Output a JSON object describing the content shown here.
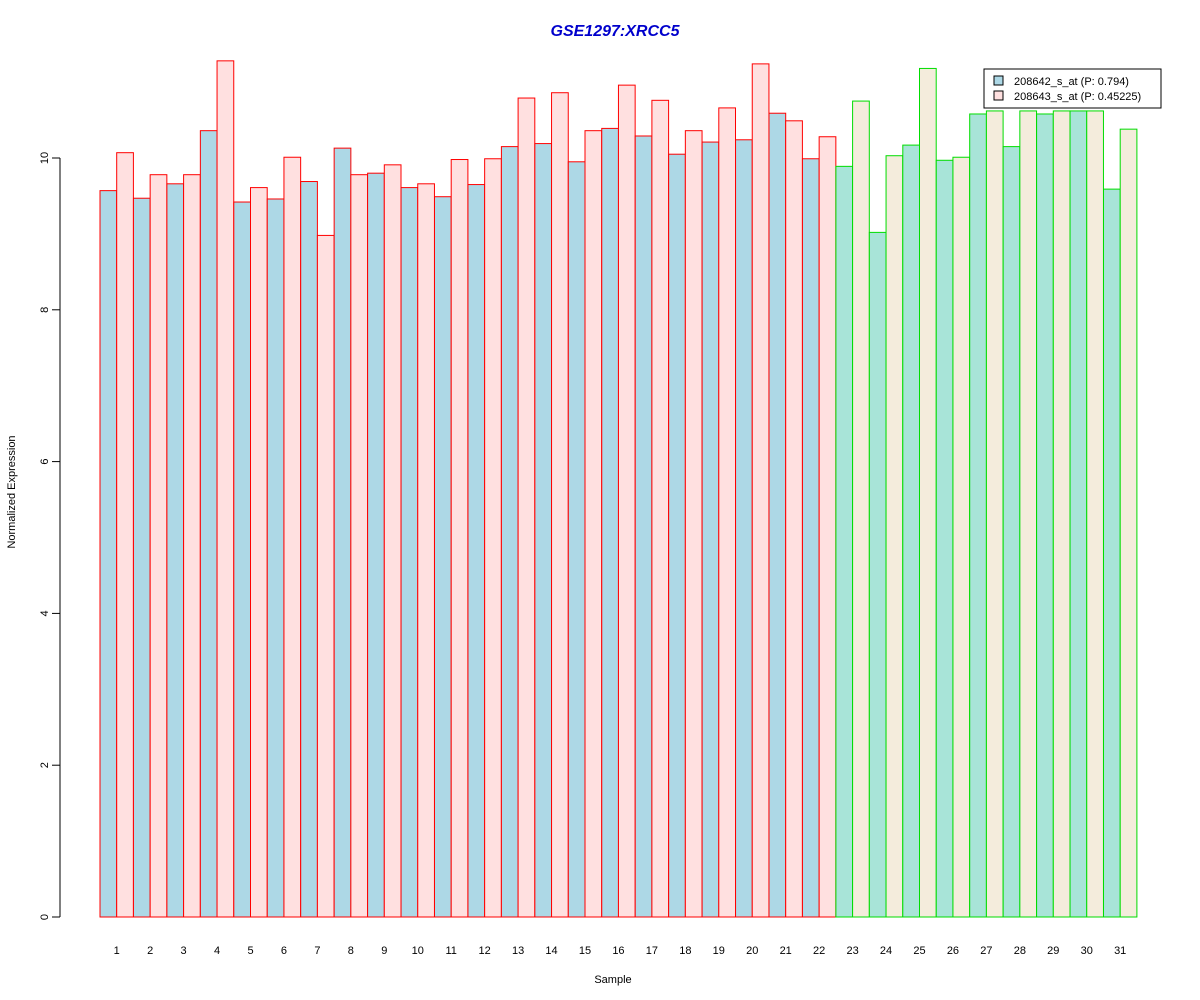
{
  "chart_data": {
    "type": "bar",
    "title": "GSE1297:XRCC5",
    "xlabel": "Sample",
    "ylabel": "Normalized Expression",
    "ylim": [
      0,
      11.3
    ],
    "yticks": [
      0,
      2,
      4,
      6,
      8,
      10
    ],
    "grid": false,
    "legend_position": "top-right",
    "categories": [
      "1",
      "2",
      "3",
      "4",
      "5",
      "6",
      "7",
      "8",
      "9",
      "10",
      "11",
      "12",
      "13",
      "14",
      "15",
      "16",
      "17",
      "18",
      "19",
      "20",
      "21",
      "22",
      "23",
      "24",
      "25",
      "26",
      "27",
      "28",
      "29",
      "30",
      "31"
    ],
    "series": [
      {
        "name": "208642_s_at (P: 0.794)",
        "values": [
          9.57,
          9.47,
          9.66,
          10.36,
          9.42,
          9.46,
          9.69,
          10.13,
          9.8,
          9.61,
          9.49,
          9.65,
          10.15,
          10.19,
          9.95,
          10.39,
          10.29,
          10.05,
          10.21,
          10.24,
          10.59,
          9.99,
          9.89,
          9.02,
          10.17,
          9.97,
          10.58,
          10.15,
          10.58,
          10.62,
          9.59
        ]
      },
      {
        "name": "208643_s_at (P: 0.45225)",
        "values": [
          10.07,
          9.78,
          9.78,
          11.28,
          9.61,
          10.01,
          8.98,
          9.78,
          9.91,
          9.66,
          9.98,
          9.99,
          10.79,
          10.86,
          10.36,
          10.96,
          10.76,
          10.36,
          10.66,
          11.24,
          10.49,
          10.28,
          10.75,
          10.03,
          11.18,
          10.01,
          10.62,
          10.62,
          10.62,
          10.62,
          10.38
        ]
      }
    ],
    "group_colors": {
      "border": [
        "#ff0000",
        "#ff0000",
        "#ff0000",
        "#ff0000",
        "#ff0000",
        "#ff0000",
        "#ff0000",
        "#ff0000",
        "#ff0000",
        "#ff0000",
        "#ff0000",
        "#ff0000",
        "#ff0000",
        "#ff0000",
        "#ff0000",
        "#ff0000",
        "#ff0000",
        "#ff0000",
        "#ff0000",
        "#ff0000",
        "#ff0000",
        "#ff0000",
        "#00dd00",
        "#00dd00",
        "#00dd00",
        "#00dd00",
        "#00dd00",
        "#00dd00",
        "#00dd00",
        "#00dd00",
        "#00dd00"
      ]
    },
    "colors": {
      "title": "#0000cc",
      "group_a_fill_1": "#add8e6",
      "group_a_fill_2": "#ffe0e0",
      "group_b_fill_1": "#a8e4d8",
      "group_b_fill_2": "#f4ecdc",
      "legend_swatch_1": "#add8e6",
      "legend_swatch_2": "#ffe0e0"
    }
  }
}
